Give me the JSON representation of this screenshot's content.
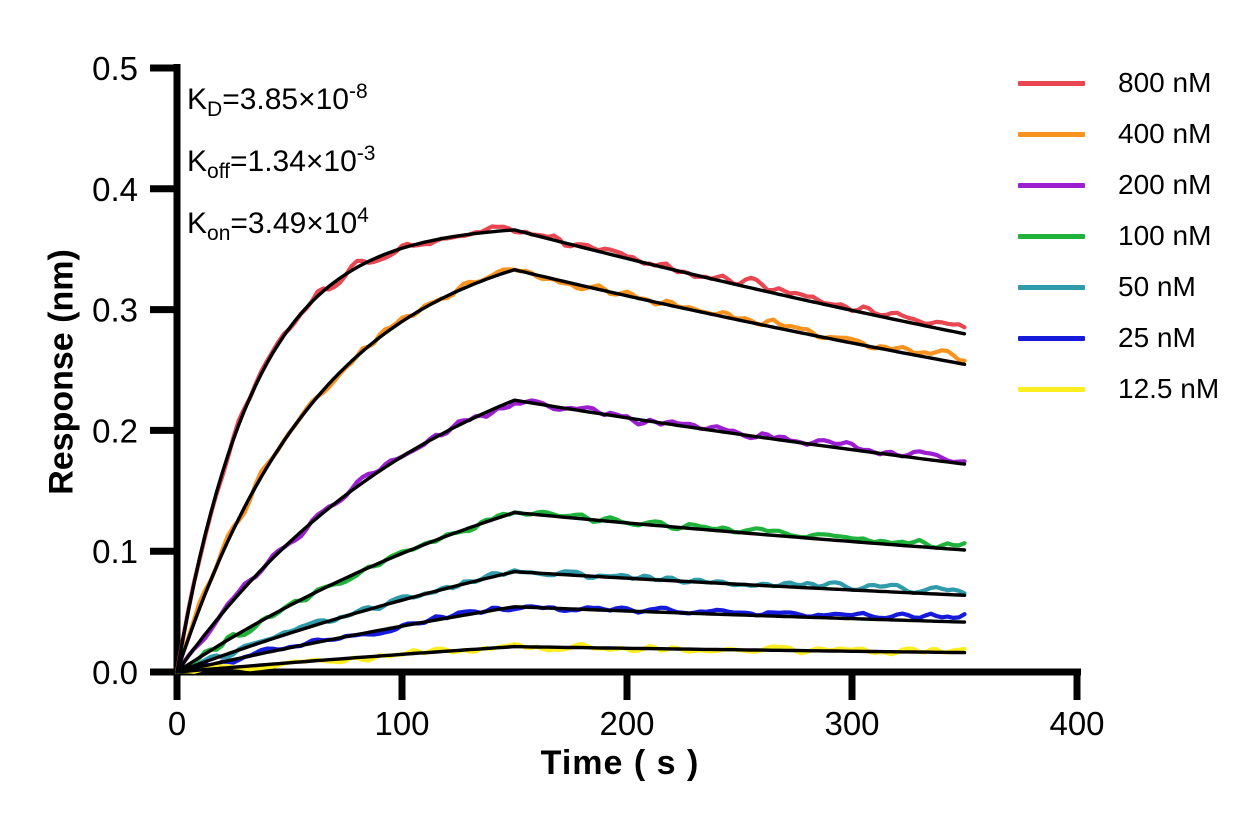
{
  "annotation": {
    "lines": [
      {
        "base": "K",
        "sub": "D",
        "eq": "=3.85×10",
        "sup": "-8"
      },
      {
        "base": "K",
        "sub": "off",
        "eq": "=1.34×10",
        "sup": "-3"
      },
      {
        "base": "K",
        "sub": "on",
        "eq": "=3.49×10",
        "sup": "4"
      }
    ]
  },
  "chart_data": {
    "type": "line",
    "title": "",
    "xlabel": "Time ( s )",
    "ylabel": "Response (nm)",
    "xlim": [
      0,
      400
    ],
    "ylim": [
      0,
      0.5
    ],
    "x_ticks": [
      0,
      100,
      200,
      300,
      400
    ],
    "x_tick_labels": [
      "0",
      "100",
      "200",
      "300",
      "400"
    ],
    "y_ticks": [
      0,
      0.1,
      0.2,
      0.3,
      0.4,
      0.5
    ],
    "y_tick_labels": [
      "0.0",
      "0.1",
      "0.2",
      "0.3",
      "0.4",
      "0.5"
    ],
    "grid": false,
    "legend_position": "right",
    "axis_color": "#000000",
    "fit_color": "#000000",
    "noise_amplitude_nm": 0.0065,
    "model": {
      "type": "1:1 binding kinetics fit",
      "kd_M": 3.85e-08,
      "koff_per_s": 0.00134,
      "kon_per_M_s": 34900.0,
      "association_end_s": 150,
      "end_s": 350
    },
    "fit_times_s": [
      0,
      25,
      50,
      75,
      100,
      125,
      150,
      175,
      200,
      225,
      250,
      275,
      300,
      325,
      350
    ],
    "series": [
      {
        "label": "800 nM",
        "concentration_nM": 800,
        "color": "#e84752",
        "peak_response_nm": 0.366,
        "end_response_nm": 0.285,
        "fit_response_nm": [
          0,
          0.192,
          0.285,
          0.329,
          0.351,
          0.361,
          0.366,
          0.354,
          0.342,
          0.331,
          0.32,
          0.31,
          0.299,
          0.29,
          0.28
        ]
      },
      {
        "label": "400 nM",
        "concentration_nM": 400,
        "color": "#f8931f",
        "peak_response_nm": 0.333,
        "end_response_nm": 0.257,
        "fit_response_nm": [
          0,
          0.118,
          0.198,
          0.253,
          0.29,
          0.316,
          0.333,
          0.322,
          0.311,
          0.301,
          0.291,
          0.282,
          0.272,
          0.263,
          0.255
        ]
      },
      {
        "label": "200 nM",
        "concentration_nM": 200,
        "color": "#9b1fd1",
        "peak_response_nm": 0.225,
        "end_response_nm": 0.175,
        "fit_response_nm": [
          0,
          0.059,
          0.107,
          0.147,
          0.178,
          0.204,
          0.225,
          0.218,
          0.21,
          0.204,
          0.197,
          0.19,
          0.184,
          0.178,
          0.172
        ]
      },
      {
        "label": "100 nM",
        "concentration_nM": 100,
        "color": "#1fb33c",
        "peak_response_nm": 0.132,
        "end_response_nm": 0.105,
        "fit_response_nm": [
          0,
          0.029,
          0.055,
          0.078,
          0.098,
          0.116,
          0.132,
          0.128,
          0.123,
          0.119,
          0.115,
          0.112,
          0.108,
          0.104,
          0.101
        ]
      },
      {
        "label": "50 nM",
        "concentration_nM": 50,
        "color": "#2f9bab",
        "peak_response_nm": 0.083,
        "end_response_nm": 0.067,
        "fit_response_nm": [
          0,
          0.017,
          0.032,
          0.046,
          0.059,
          0.072,
          0.083,
          0.08,
          0.078,
          0.075,
          0.073,
          0.07,
          0.068,
          0.066,
          0.064
        ]
      },
      {
        "label": "25 nM",
        "concentration_nM": 25,
        "color": "#161adb",
        "peak_response_nm": 0.054,
        "end_response_nm": 0.046,
        "fit_response_nm": [
          0,
          0.01,
          0.02,
          0.029,
          0.038,
          0.046,
          0.054,
          0.052,
          0.05,
          0.049,
          0.047,
          0.046,
          0.044,
          0.043,
          0.041
        ]
      },
      {
        "label": "12.5 nM",
        "concentration_nM": 12.5,
        "color": "#fdee20",
        "peak_response_nm": 0.021,
        "end_response_nm": 0.017,
        "fit_response_nm": [
          0,
          0.004,
          0.008,
          0.011,
          0.015,
          0.018,
          0.021,
          0.02,
          0.02,
          0.019,
          0.018,
          0.018,
          0.017,
          0.017,
          0.016
        ]
      }
    ]
  }
}
